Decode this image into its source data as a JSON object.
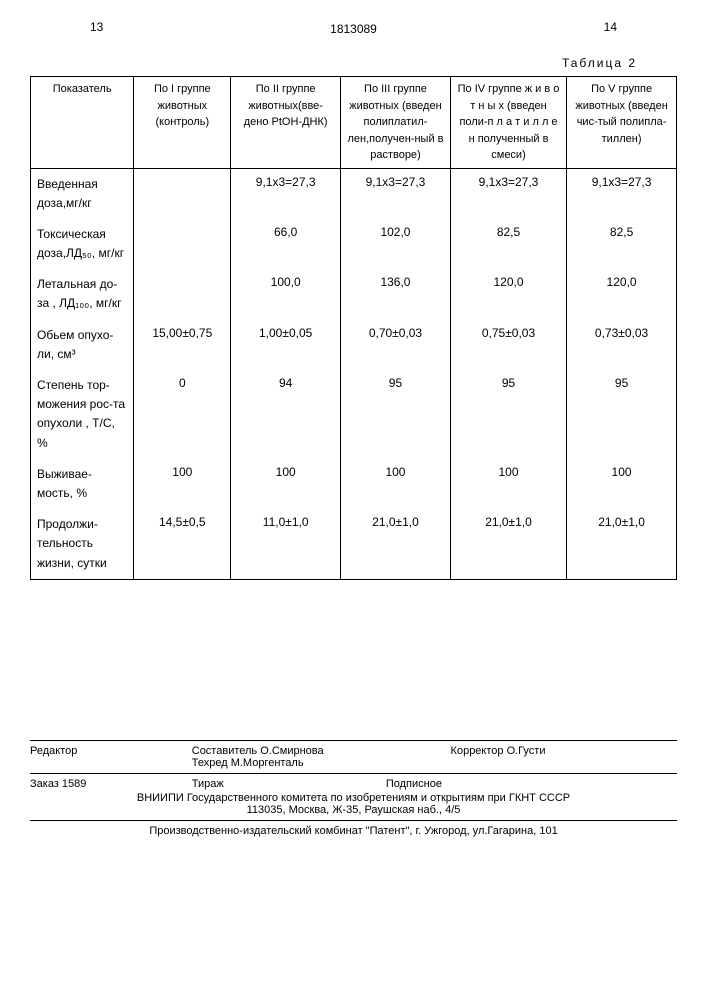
{
  "pageLeft": "13",
  "docNumber": "1813089",
  "pageRight": "14",
  "tableTitle": "Таблица 2",
  "table": {
    "columns": [
      "Показатель",
      "По I группе животных (контроль)",
      "По II группе животных(вве-дено PtOH-ДНК)",
      "По III группе животных (введен полиплатил-лен,получен-ный в растворе)",
      "По IV группе ж и в о т н ы х (введен поли-п л а т и л л е н полученный в смеси)",
      "По V группе животных (введен чис-тый полипла-тиллен)"
    ],
    "rows": [
      {
        "label": "Введенная доза,мг/кг",
        "c1": "",
        "c2": "9,1х3=27,3",
        "c3": "9,1х3=27,3",
        "c4": "9,1х3=27,3",
        "c5": "9,1х3=27,3"
      },
      {
        "label": "Токсическая доза,ЛД₅₀, мг/кг",
        "c1": "",
        "c2": "66,0",
        "c3": "102,0",
        "c4": "82,5",
        "c5": "82,5"
      },
      {
        "label": "Летальная до-за , ЛД₁₀₀, мг/кг",
        "c1": "",
        "c2": "100,0",
        "c3": "136,0",
        "c4": "120,0",
        "c5": "120,0"
      },
      {
        "label": "Обьем опухо-ли, см³",
        "c1": "15,00±0,75",
        "c2": "1,00±0,05",
        "c3": "0,70±0,03",
        "c4": "0,75±0,03",
        "c5": "0,73±0,03"
      },
      {
        "label": "Степень тор-можения рос-та опухоли , Т/С, %",
        "c1": "0",
        "c2": "94",
        "c3": "95",
        "c4": "95",
        "c5": "95"
      },
      {
        "label": "Выживае-мость, %",
        "c1": "100",
        "c2": "100",
        "c3": "100",
        "c4": "100",
        "c5": "100"
      },
      {
        "label": "Продолжи-тельность жизни, сутки",
        "c1": "14,5±0,5",
        "c2": "11,0±1,0",
        "c3": "21,0±1,0",
        "c4": "21,0±1,0",
        "c5": "21,0±1,0"
      }
    ]
  },
  "footer": {
    "editor": "Редактор",
    "compiler": "Составитель О.Смирнова",
    "techred": "Техред М.Моргенталь",
    "corrector": "Корректор    О.Густи",
    "order": "Заказ 1589",
    "tirazh": "Тираж",
    "subscription": "Подписное",
    "org1": "ВНИИПИ Государственного комитета по изобретениям и открытиям при ГКНТ СССР",
    "org2": "113035, Москва, Ж-35, Раушская наб., 4/5",
    "org3": "Производственно-издательский комбинат \"Патент\", г. Ужгород, ул.Гагарина, 101"
  }
}
